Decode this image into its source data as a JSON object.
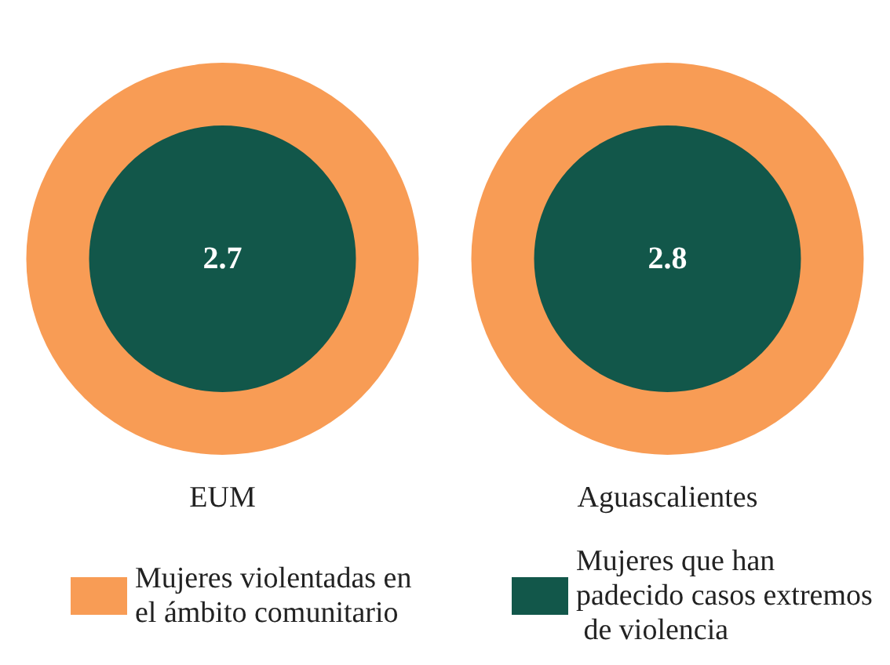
{
  "chart_data": {
    "type": "other",
    "categories": [
      "EUM",
      "Aguascalientes"
    ],
    "legend": "bottom",
    "data_labels": true,
    "series": [
      {
        "name": "Mujeres violentadas en el ámbito comunitario",
        "color": "#f89c55",
        "values": [
          null,
          null
        ]
      },
      {
        "name": "Mujeres que han padecido casos extremos de violencia",
        "color": "#12574a",
        "values": [
          2.7,
          2.8
        ]
      }
    ]
  }
}
